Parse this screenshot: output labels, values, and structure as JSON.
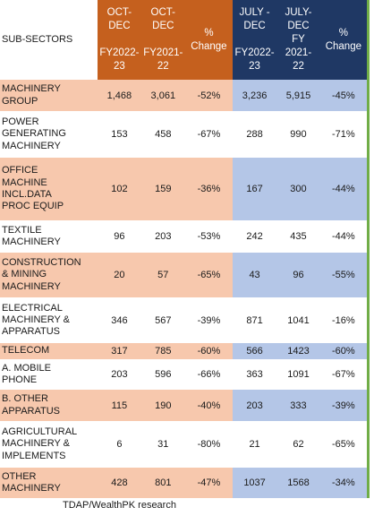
{
  "table": {
    "headers": {
      "sub_sectors": "SUB-SECTORS",
      "oct_dec_fy2022_23": "OCT-\nDEC\n\nFY2022-\n23",
      "oct_dec_fy2021_22": "OCT-\nDEC\n\nFY2021-\n22",
      "pct_change_oct": "%\nChange",
      "july_dec_fy2022_23": "JULY -\nDEC\n\nFY2022-\n23",
      "july_dec_fy2021_22": "JULY-\nDEC\nFY\n2021-\n22",
      "pct_change_july": "%\nChange"
    },
    "rows": [
      {
        "name": "MACHINERY\nGROUP",
        "c1": "1,468",
        "c2": "3,061",
        "c3": "-52%",
        "c4": "3,236",
        "c5": "5,915",
        "c6": "-45%"
      },
      {
        "name": "POWER\nGENERATING\nMACHINERY",
        "c1": "153",
        "c2": "458",
        "c3": "-67%",
        "c4": "288",
        "c5": "990",
        "c6": "-71%"
      },
      {
        "name": "OFFICE\nMACHINE\nINCL.DATA\nPROC EQUIP",
        "c1": "102",
        "c2": "159",
        "c3": "-36%",
        "c4": "167",
        "c5": "300",
        "c6": "-44%"
      },
      {
        "name": "TEXTILE\nMACHINERY",
        "c1": "96",
        "c2": "203",
        "c3": "-53%",
        "c4": "242",
        "c5": "435",
        "c6": "-44%"
      },
      {
        "name": "CONSTRUCTION\n& MINING\nMACHINERY",
        "c1": "20",
        "c2": "57",
        "c3": "-65%",
        "c4": "43",
        "c5": "96",
        "c6": "-55%"
      },
      {
        "name": "ELECTRICAL\nMACHINERY &\nAPPARATUS",
        "c1": "346",
        "c2": "567",
        "c3": "-39%",
        "c4": "871",
        "c5": "1041",
        "c6": "-16%"
      },
      {
        "name": "TELECOM",
        "c1": "317",
        "c2": "785",
        "c3": "-60%",
        "c4": "566",
        "c5": "1423",
        "c6": "-60%"
      },
      {
        "name": "   A. MOBILE\n   PHONE",
        "c1": "203",
        "c2": "596",
        "c3": "-66%",
        "c4": "363",
        "c5": "1091",
        "c6": "-67%"
      },
      {
        "name": "   B. OTHER\n   APPARATUS",
        "c1": "115",
        "c2": "190",
        "c3": "-40%",
        "c4": "203",
        "c5": "333",
        "c6": "-39%"
      },
      {
        "name": "AGRICULTURAL\nMACHINERY &\nIMPLEMENTS",
        "c1": "6",
        "c2": "31",
        "c3": "-80%",
        "c4": "21",
        "c5": "62",
        "c6": "-65%"
      },
      {
        "name": "OTHER\nMACHINERY",
        "c1": "428",
        "c2": "801",
        "c3": "-47%",
        "c4": "1037",
        "c5": "1568",
        "c6": "-34%"
      }
    ]
  },
  "source": "TDAP/WealthPK research",
  "colors": {
    "oct_header": "#c5601e",
    "july_header": "#1f3864",
    "oct_highlight": "#f7c8ad",
    "july_highlight": "#b4c6e7",
    "edge_border": "#70ad47"
  }
}
